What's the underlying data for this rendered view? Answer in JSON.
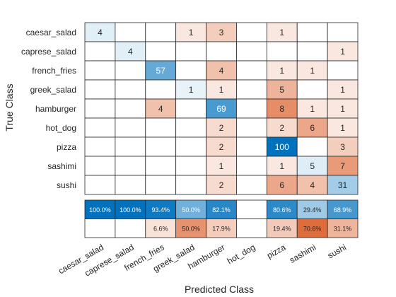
{
  "chart_data": {
    "type": "heatmap",
    "subtype": "confusion-matrix",
    "xlabel": "Predicted Class",
    "ylabel": "True Class",
    "classes": [
      "caesar_salad",
      "caprese_salad",
      "french_fries",
      "greek_salad",
      "hamburger",
      "hot_dog",
      "pizza",
      "sashimi",
      "sushi"
    ],
    "matrix": [
      [
        4,
        0,
        0,
        1,
        3,
        0,
        1,
        0,
        0
      ],
      [
        0,
        4,
        0,
        0,
        0,
        0,
        0,
        0,
        1
      ],
      [
        0,
        0,
        57,
        0,
        4,
        0,
        1,
        1,
        0
      ],
      [
        0,
        0,
        0,
        1,
        1,
        0,
        5,
        0,
        1
      ],
      [
        0,
        0,
        4,
        0,
        69,
        0,
        8,
        1,
        1
      ],
      [
        0,
        0,
        0,
        0,
        2,
        0,
        2,
        6,
        1
      ],
      [
        0,
        0,
        0,
        0,
        2,
        0,
        100,
        0,
        3
      ],
      [
        0,
        0,
        0,
        0,
        1,
        0,
        1,
        5,
        7
      ],
      [
        0,
        0,
        0,
        0,
        2,
        0,
        6,
        4,
        31
      ]
    ],
    "precision_row": [
      "100.0%",
      "100.0%",
      "93.4%",
      "50.0%",
      "82.1%",
      "",
      "80.6%",
      "29.4%",
      "68.9%"
    ],
    "precision_values": [
      1.0,
      1.0,
      0.934,
      0.5,
      0.821,
      null,
      0.806,
      0.294,
      0.689
    ],
    "false_discovery_row": [
      "",
      "",
      "6.6%",
      "50.0%",
      "17.9%",
      "",
      "19.4%",
      "70.6%",
      "31.1%"
    ],
    "false_discovery_values": [
      0,
      0,
      0.066,
      0.5,
      0.179,
      null,
      0.194,
      0.706,
      0.311
    ],
    "colors": {
      "correct": "#0072bd",
      "incorrect": "#d95319",
      "background": "#ffffff",
      "grid": "#262626"
    }
  }
}
